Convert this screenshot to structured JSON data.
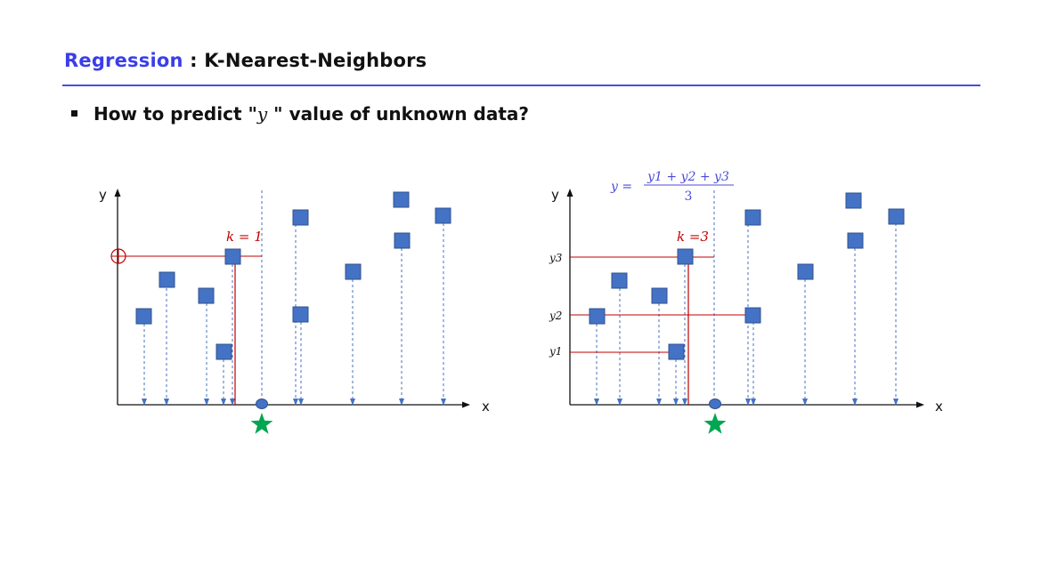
{
  "header": {
    "accent_word": "Regression",
    "separator": " : ",
    "rest": "K-Nearest-Neighbors"
  },
  "bullet": {
    "prefix": "How to predict \"",
    "variable": "y",
    "suffix": " \"  value of unknown data?"
  },
  "left_panel": {
    "y_axis_label": "y",
    "x_axis_label": "x",
    "k_label": "k = 1"
  },
  "right_panel": {
    "y_axis_label": "y",
    "x_axis_label": "x",
    "k_label": "k =3",
    "neighbor_labels": [
      "y3",
      "y2",
      "y1"
    ],
    "formula": {
      "lhs": "y =",
      "numerator": "y1 + y2 + y3",
      "denominator": "3"
    }
  },
  "colors": {
    "accent": "#3a3ee8",
    "point_fill": "#4472c4",
    "point_stroke": "#2f528f",
    "projection": "#4472c4",
    "neighbor_line": "#c00000",
    "query_star": "#00a651",
    "formula": "#4b4bd8"
  },
  "icons": {
    "data_point": "blue-square",
    "query_marker": "green-star",
    "predicted_value": "red-circle-crosshair"
  }
}
